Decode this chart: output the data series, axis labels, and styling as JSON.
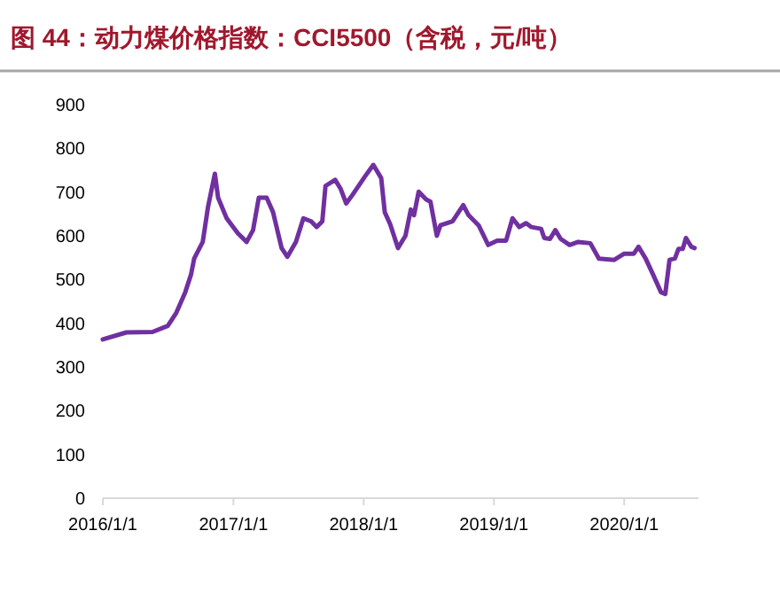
{
  "chart_data": {
    "type": "line",
    "title": "图 44：动力煤价格指数：CCI5500（含税，元/吨）",
    "x": [
      "2016-01-01",
      "2016-03-07",
      "2016-05-19",
      "2016-07-01",
      "2016-07-25",
      "2016-08-19",
      "2016-09-04",
      "2016-09-13",
      "2016-10-07",
      "2016-10-22",
      "2016-11-10",
      "2016-11-19",
      "2016-12-13",
      "2017-01-13",
      "2017-02-07",
      "2017-02-25",
      "2017-03-13",
      "2017-04-04",
      "2017-04-22",
      "2017-05-16",
      "2017-06-01",
      "2017-06-25",
      "2017-07-16",
      "2017-08-07",
      "2017-08-22",
      "2017-09-07",
      "2017-09-16",
      "2017-10-13",
      "2017-10-28",
      "2017-11-13",
      "2017-12-01",
      "2018-01-04",
      "2018-01-28",
      "2018-02-19",
      "2018-03-01",
      "2018-03-16",
      "2018-04-07",
      "2018-04-28",
      "2018-05-13",
      "2018-05-22",
      "2018-06-04",
      "2018-06-25",
      "2018-07-07",
      "2018-07-25",
      "2018-08-04",
      "2018-09-07",
      "2018-10-07",
      "2018-10-22",
      "2018-11-19",
      "2018-12-16",
      "2019-01-10",
      "2019-02-04",
      "2019-02-22",
      "2019-03-13",
      "2019-04-01",
      "2019-04-16",
      "2019-05-13",
      "2019-05-22",
      "2019-06-07",
      "2019-06-22",
      "2019-07-07",
      "2019-08-01",
      "2019-08-25",
      "2019-09-28",
      "2019-10-22",
      "2019-12-04",
      "2020-01-01",
      "2020-01-28",
      "2020-02-10",
      "2020-03-01",
      "2020-03-22",
      "2020-04-13",
      "2020-04-25",
      "2020-05-07",
      "2020-05-22",
      "2020-06-01",
      "2020-06-13",
      "2020-06-22",
      "2020-07-07",
      "2020-07-16"
    ],
    "series": [
      {
        "color": "#7030a0",
        "values": [
          363,
          379,
          380,
          394,
          424,
          471,
          511,
          548,
          586,
          667,
          742,
          687,
          640,
          606,
          586,
          613,
          687,
          687,
          654,
          572,
          552,
          586,
          640,
          633,
          620,
          633,
          714,
          728,
          708,
          674,
          694,
          735,
          762,
          732,
          654,
          627,
          572,
          600,
          660,
          647,
          701,
          683,
          678,
          600,
          624,
          633,
          670,
          647,
          624,
          579,
          589,
          589,
          640,
          620,
          629,
          620,
          616,
          595,
          593,
          613,
          593,
          579,
          586,
          583,
          548,
          545,
          559,
          559,
          575,
          548,
          511,
          471,
          467,
          545,
          548,
          570,
          570,
          595,
          575,
          572
        ]
      }
    ],
    "xlim": [
      "2016-01-01",
      "2020-07-27"
    ],
    "xticks": [
      {
        "value": "2016-01-01",
        "label": "2016/1/1"
      },
      {
        "value": "2017-01-01",
        "label": "2017/1/1"
      },
      {
        "value": "2018-01-01",
        "label": "2018/1/1"
      },
      {
        "value": "2019-01-01",
        "label": "2019/1/1"
      },
      {
        "value": "2020-01-01",
        "label": "2020/1/1"
      }
    ],
    "ylim": [
      0,
      900
    ],
    "yticks": [
      0,
      100,
      200,
      300,
      400,
      500,
      600,
      700,
      800,
      900
    ],
    "grid": false,
    "marker": "none",
    "line_style": "solid"
  }
}
